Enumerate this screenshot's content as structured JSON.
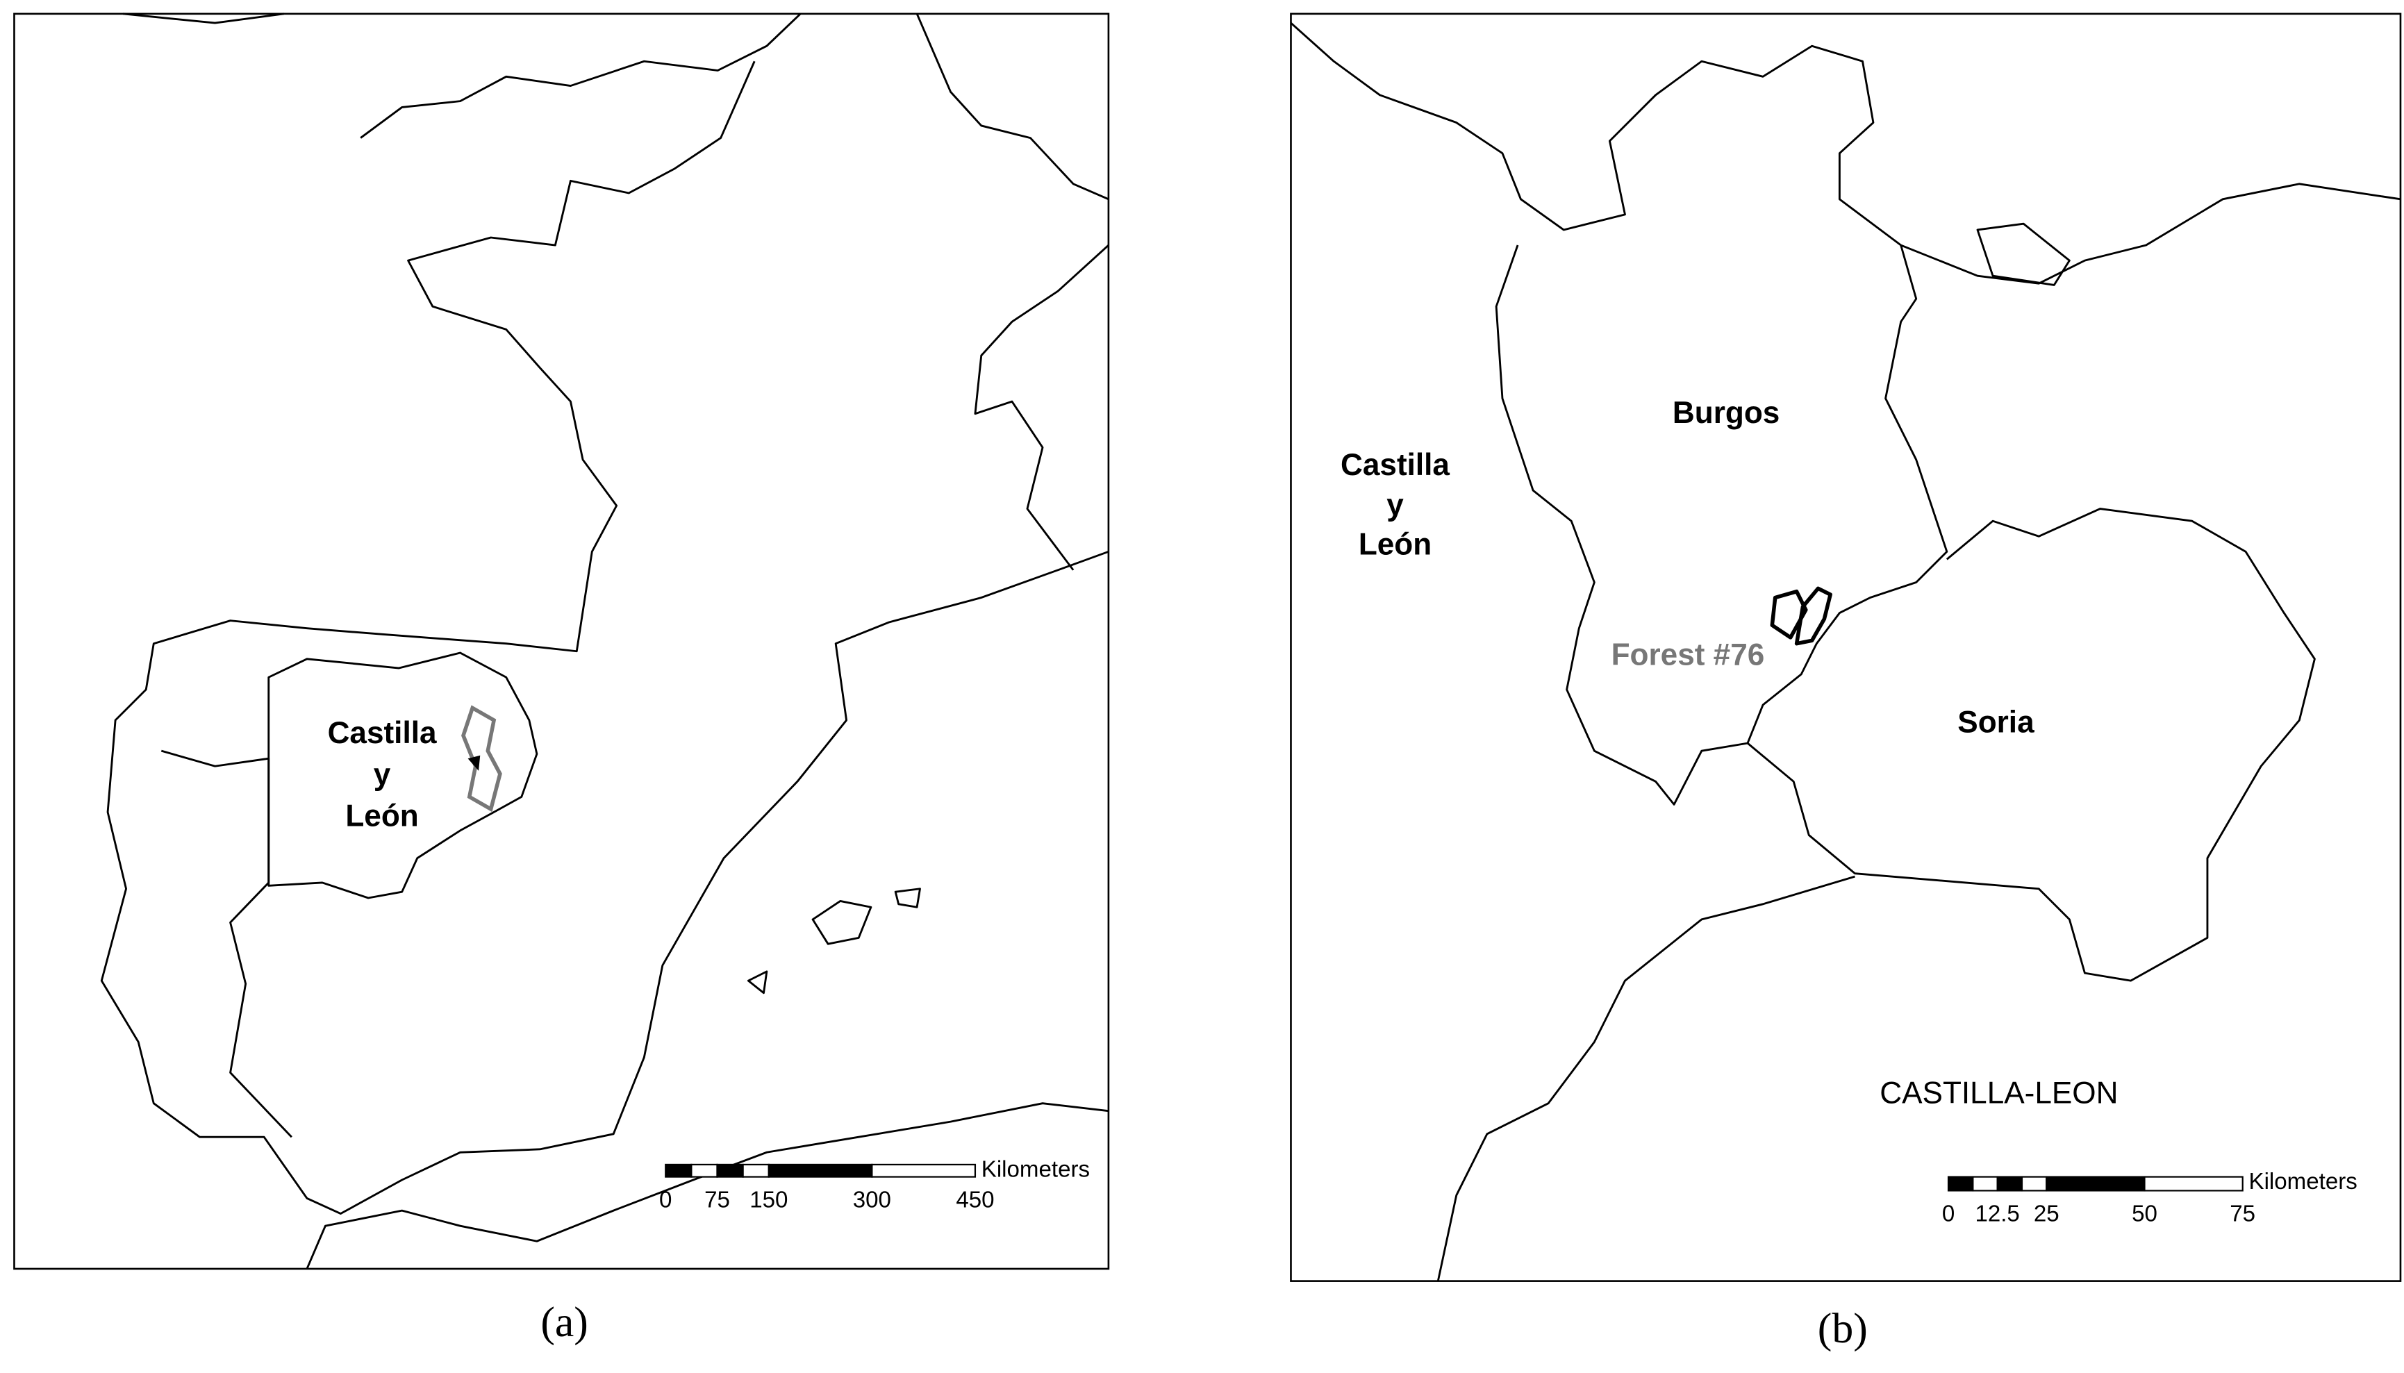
{
  "panel_a": {
    "region_label": [
      "Castilla",
      "y",
      "León"
    ],
    "scale_bar": {
      "ticks": [
        0,
        75,
        150,
        300,
        450
      ],
      "unit": "Kilometers"
    },
    "caption": "(a)"
  },
  "panel_b": {
    "region_label": [
      "Castilla",
      "y",
      "León"
    ],
    "burgos": "Burgos",
    "soria": "Soria",
    "forest": "Forest #76",
    "region_name": "CASTILLA-LEON",
    "scale_bar": {
      "ticks": [
        0,
        12.5,
        25,
        50,
        75
      ],
      "unit": "Kilometers"
    },
    "caption": "(b)"
  }
}
